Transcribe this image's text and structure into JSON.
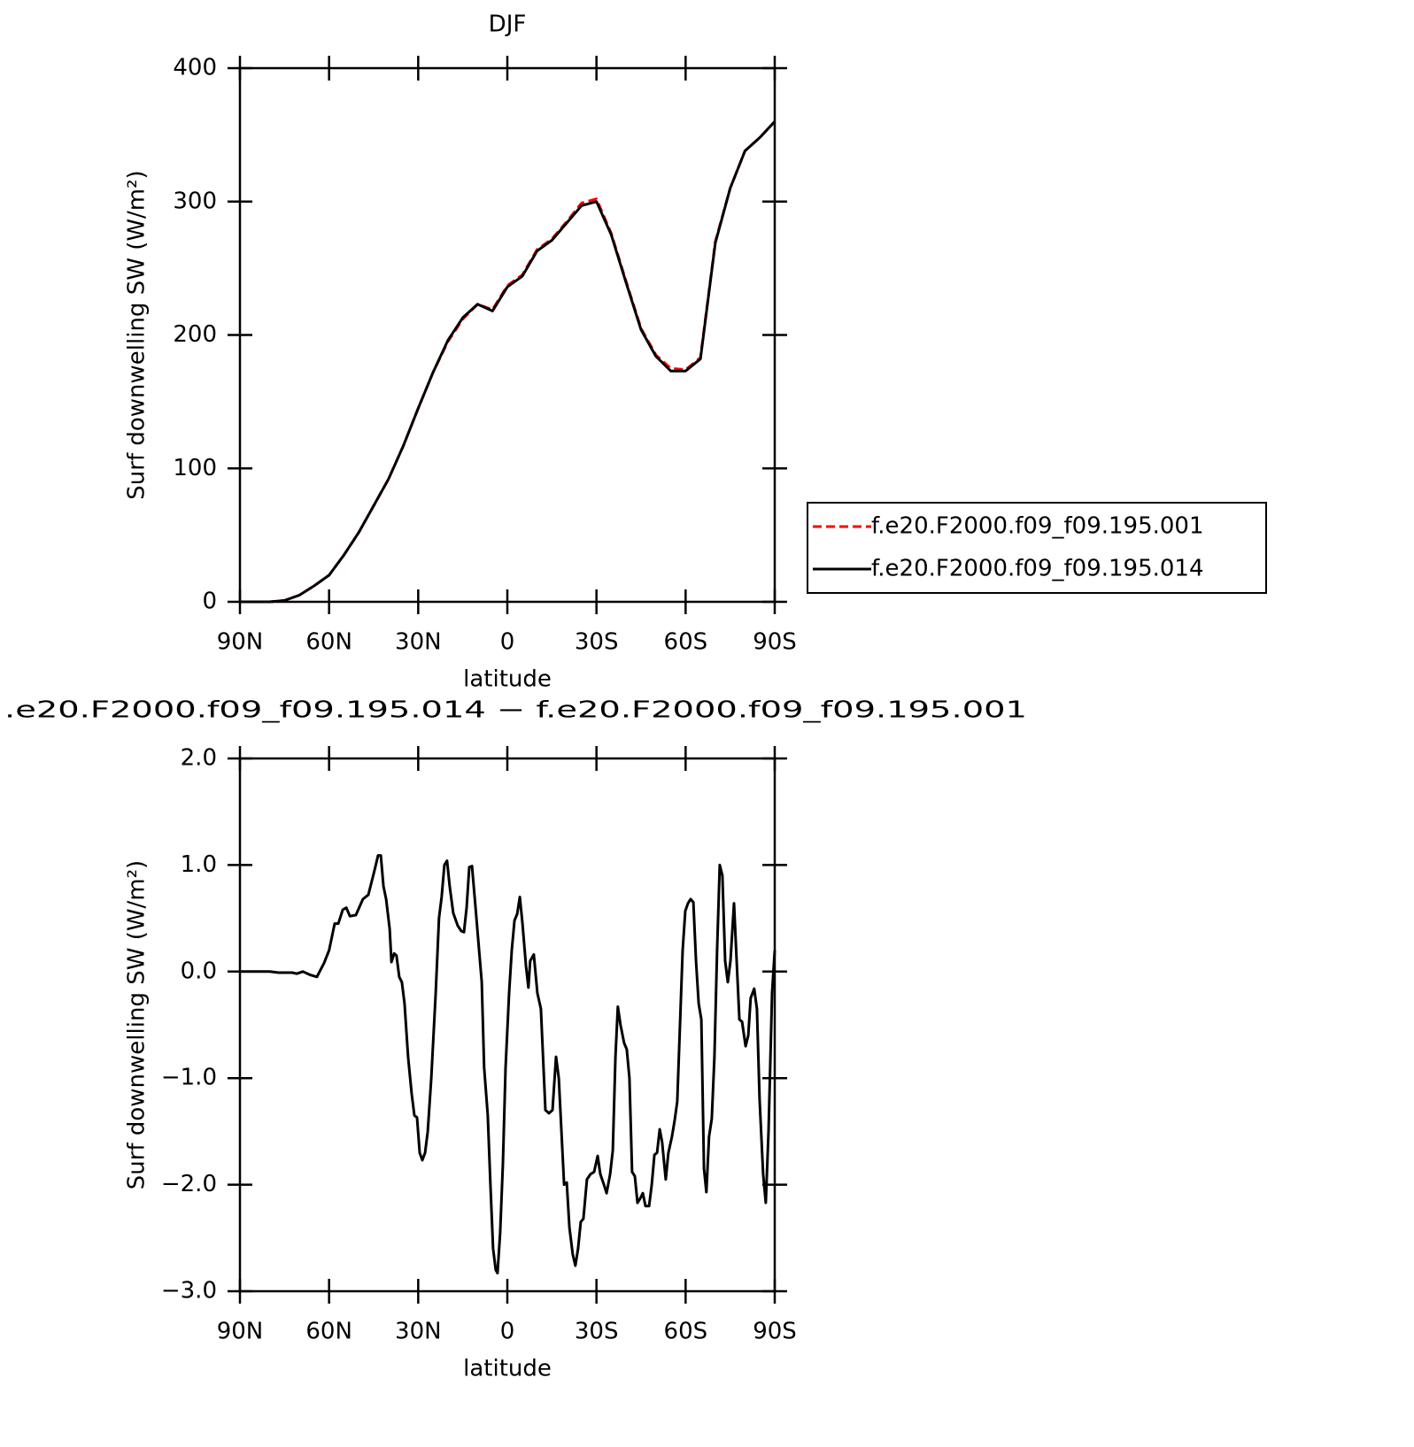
{
  "chart_data": [
    {
      "type": "line",
      "title": "DJF",
      "xlabel": "latitude",
      "ylabel": "Surf downwelling SW (W/m²)",
      "x": [
        90,
        85,
        80,
        75,
        70,
        65,
        60,
        55,
        50,
        45,
        40,
        35,
        30,
        25,
        20,
        15,
        10,
        5,
        0,
        -5,
        -10,
        -15,
        -20,
        -25,
        -30,
        -35,
        -40,
        -45,
        -50,
        -55,
        -60,
        -65,
        -70,
        -75,
        -80,
        -85,
        -90
      ],
      "series": [
        {
          "name": "f.e20.F2000.f09_f09.195.001",
          "color": "#ff0000",
          "dashed": true,
          "values": [
            0,
            0,
            0,
            1,
            5,
            12,
            20,
            35,
            52,
            72,
            92,
            117,
            145,
            172,
            195,
            212,
            223,
            219,
            237,
            245,
            264,
            272,
            285,
            299,
            302,
            276,
            240,
            205,
            185,
            175,
            174,
            183,
            270,
            310,
            338,
            348,
            360
          ]
        },
        {
          "name": "f.e20.F2000.f09_f09.195.014",
          "color": "#000000",
          "dashed": false,
          "values": [
            0,
            0,
            0,
            1,
            5,
            12,
            20,
            35,
            52,
            72,
            92,
            117,
            145,
            172,
            196,
            213,
            223,
            218,
            236,
            244,
            263,
            271,
            284,
            297,
            300,
            275,
            239,
            204,
            184,
            173,
            173,
            182,
            269,
            310,
            338,
            348,
            360
          ]
        }
      ],
      "xlim": [
        90,
        -90
      ],
      "xticks": [
        {
          "value": 90,
          "label": "90N"
        },
        {
          "value": 60,
          "label": "60N"
        },
        {
          "value": 30,
          "label": "30N"
        },
        0,
        {
          "value": -30,
          "label": "30S"
        },
        {
          "value": -60,
          "label": "60S"
        },
        {
          "value": -90,
          "label": "90S"
        }
      ],
      "ylim": [
        0,
        400
      ],
      "yticks": [
        0,
        100,
        200,
        300,
        400
      ],
      "legend": "right"
    },
    {
      "type": "line",
      "title": ".e20.F2000.f09_f09.195.014 − f.e20.F2000.f09_f09.195.001",
      "xlabel": "latitude",
      "ylabel": "Surf downwelling SW (W/m²)",
      "x": [
        90,
        80,
        77,
        72.4,
        70.9,
        68.8,
        66.5,
        64.1,
        61.7,
        60,
        58.1,
        56.9,
        55.4,
        54.2,
        53,
        51,
        48.6,
        46.8,
        44.7,
        43.5,
        42.6,
        41.7,
        40.8,
        39.6,
        39,
        38.1,
        37.3,
        36.4,
        35.5,
        34.6,
        33.4,
        32.2,
        31.3,
        30.4,
        29.5,
        28.6,
        27.7,
        26.8,
        25.6,
        24.1,
        23,
        22.1,
        21.2,
        20.3,
        19.4,
        18.2,
        16.7,
        15.5,
        14.6,
        13.7,
        12.8,
        11.9,
        10.7,
        9.5,
        8.6,
        7.8,
        6.6,
        5.7,
        4.8,
        3.9,
        3.3,
        2.4,
        1.5,
        0.6,
        -0.6,
        -1.5,
        -2.4,
        -3.3,
        -4.2,
        -5.1,
        -6.3,
        -7.1,
        -7.7,
        -8.9,
        -10.1,
        -11.3,
        -12.8,
        -14,
        -15.2,
        -16.4,
        -17.3,
        -18.2,
        -19.1,
        -20,
        -20.9,
        -22,
        -22.9,
        -23.8,
        -24.7,
        -25.6,
        -26.8,
        -28,
        -29.2,
        -30.4,
        -31.3,
        -32.5,
        -33.4,
        -34.6,
        -35.5,
        -36.4,
        -37.2,
        -38.1,
        -39.3,
        -40.2,
        -41.1,
        -42,
        -42.9,
        -43.8,
        -44.7,
        -45.6,
        -46.5,
        -47.7,
        -48.6,
        -49.5,
        -50.4,
        -51.3,
        -52.1,
        -53.3,
        -54.2,
        -55.4,
        -56.3,
        -57.2,
        -58.1,
        -59,
        -59.9,
        -60.8,
        -61.7,
        -62.6,
        -63.5,
        -64.4,
        -65.3,
        -66.2,
        -67,
        -67.9,
        -68.8,
        -69.7,
        -70.6,
        -71.5,
        -72.4,
        -73.3,
        -74.2,
        -75.1,
        -76.3,
        -77.2,
        -78.1,
        -79,
        -80.2,
        -81.1,
        -81.9,
        -83.1,
        -84,
        -84.9,
        -86.1,
        -87,
        -87.9,
        -89.1,
        -90
      ],
      "series": [
        {
          "name": null,
          "color": "#000000",
          "dashed": false,
          "values": [
            0,
            0,
            -0.01,
            -0.01,
            -0.02,
            0,
            -0.03,
            -0.05,
            0.08,
            0.2,
            0.45,
            0.45,
            0.58,
            0.6,
            0.52,
            0.53,
            0.68,
            0.72,
            0.95,
            1.09,
            1.09,
            0.8,
            0.68,
            0.4,
            0.09,
            0.17,
            0.15,
            -0.05,
            -0.1,
            -0.3,
            -0.8,
            -1.15,
            -1.35,
            -1.37,
            -1.7,
            -1.77,
            -1.7,
            -1.5,
            -1.0,
            -0.2,
            0.5,
            0.7,
            1.0,
            1.04,
            0.8,
            0.55,
            0.43,
            0.38,
            0.37,
            0.6,
            0.98,
            0.99,
            0.6,
            0.2,
            -0.1,
            -0.9,
            -1.35,
            -2.0,
            -2.6,
            -2.8,
            -2.83,
            -2.45,
            -1.8,
            -0.9,
            -0.2,
            0.2,
            0.48,
            0.54,
            0.7,
            0.45,
            0.05,
            -0.15,
            0.1,
            0.16,
            -0.2,
            -0.35,
            -1.3,
            -1.33,
            -1.3,
            -0.8,
            -1.0,
            -1.5,
            -2.0,
            -1.98,
            -2.4,
            -2.65,
            -2.76,
            -2.6,
            -2.35,
            -2.32,
            -1.95,
            -1.9,
            -1.88,
            -1.73,
            -1.9,
            -2.0,
            -2.08,
            -1.9,
            -1.68,
            -0.8,
            -0.33,
            -0.5,
            -0.67,
            -0.73,
            -1.0,
            -1.88,
            -1.92,
            -2.17,
            -2.13,
            -2.08,
            -2.2,
            -2.2,
            -2.0,
            -1.72,
            -1.7,
            -1.48,
            -1.6,
            -1.95,
            -1.7,
            -1.55,
            -1.4,
            -1.22,
            -0.5,
            0.2,
            0.57,
            0.64,
            0.68,
            0.65,
            0.1,
            -0.3,
            -0.45,
            -1.85,
            -2.07,
            -1.55,
            -1.38,
            -0.8,
            0.2,
            1.0,
            0.9,
            0.1,
            -0.1,
            0.1,
            0.64,
            0.1,
            -0.45,
            -0.47,
            -0.7,
            -0.6,
            -0.25,
            -0.16,
            -0.35,
            -1.2,
            -1.9,
            -2.17,
            -1.5,
            -0.2,
            0.2
          ]
        }
      ],
      "xlim": [
        90,
        -90
      ],
      "xticks": [
        {
          "value": 90,
          "label": "90N"
        },
        {
          "value": 60,
          "label": "60N"
        },
        {
          "value": 30,
          "label": "30N"
        },
        0,
        {
          "value": -30,
          "label": "30S"
        },
        {
          "value": -60,
          "label": "60S"
        },
        {
          "value": -90,
          "label": "90S"
        }
      ],
      "ylim": [
        -3,
        2
      ],
      "yticks": [
        {
          "value": -3,
          "label": "−3.0"
        },
        {
          "value": -2,
          "label": "−2.0"
        },
        {
          "value": -1,
          "label": "−1.0"
        },
        {
          "value": 0,
          "label": "0.0"
        },
        {
          "value": 1,
          "label": "1.0"
        },
        {
          "value": 2,
          "label": "2.0"
        }
      ]
    }
  ]
}
